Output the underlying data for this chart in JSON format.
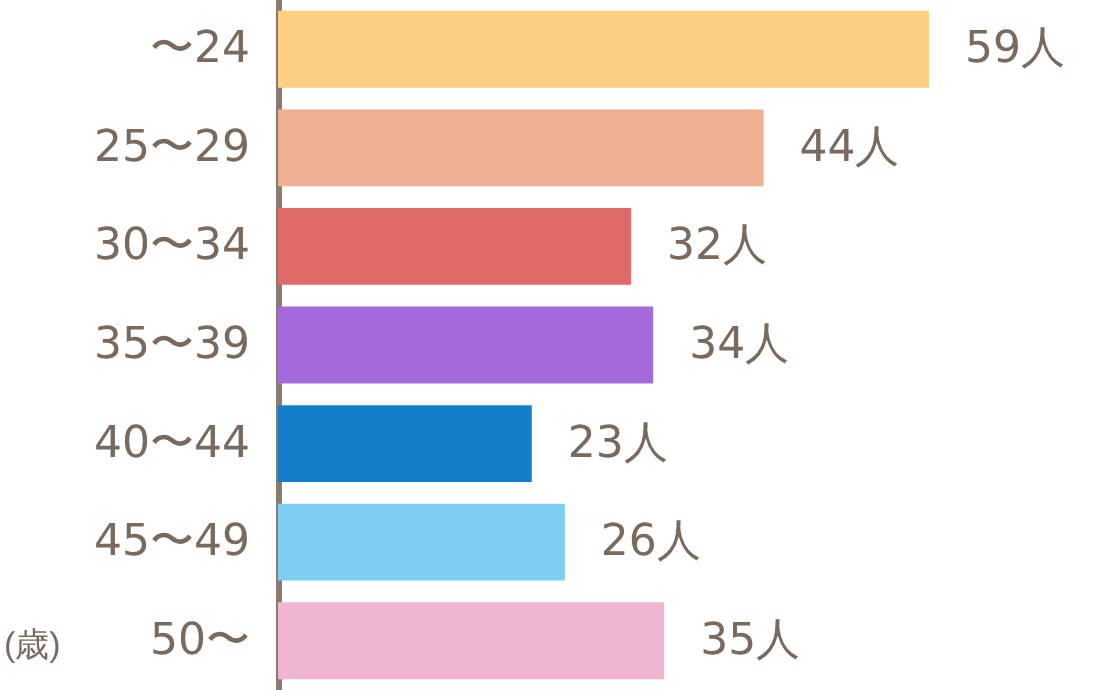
{
  "chart_data": {
    "type": "bar",
    "orientation": "horizontal",
    "ylabel": "(歳)",
    "categories": [
      "〜24",
      "25〜29",
      "30〜34",
      "35〜39",
      "40〜44",
      "45〜49",
      "50〜"
    ],
    "values": [
      59,
      44,
      32,
      34,
      23,
      26,
      35
    ],
    "colors": [
      "#fbd083",
      "#eeae92",
      "#e06a69",
      "#a46adc",
      "#137fcc",
      "#7ecef3",
      "#efb6d2"
    ],
    "value_labels": [
      "59人",
      "44人",
      "32人",
      "34人",
      "23人",
      "26人",
      "35人"
    ]
  }
}
